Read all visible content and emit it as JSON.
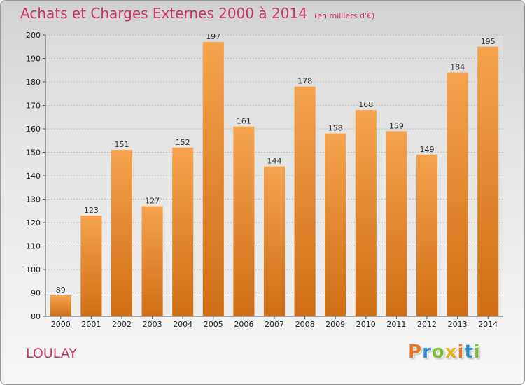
{
  "header": {
    "title": "Achats et Charges Externes 2000 à 2014",
    "subtitle": "(en milliers d'€)"
  },
  "footer": {
    "location": "LOULAY",
    "logo_text": "Proxiti"
  },
  "colors": {
    "title": "#c8336a",
    "bar_top": "#f5a34e",
    "bar_bottom": "#cf6e15",
    "logo_letters": [
      "#e8752a",
      "#2f8fd6",
      "#7cbf3a",
      "#e8b21c",
      "#e8752a",
      "#2f8fd6",
      "#7cbf3a"
    ]
  },
  "chart_data": {
    "type": "bar",
    "categories": [
      "2000",
      "2001",
      "2002",
      "2003",
      "2004",
      "2005",
      "2006",
      "2007",
      "2008",
      "2009",
      "2010",
      "2011",
      "2012",
      "2013",
      "2014"
    ],
    "values": [
      89,
      123,
      151,
      127,
      152,
      197,
      161,
      144,
      178,
      158,
      168,
      159,
      149,
      184,
      195
    ],
    "ylim": [
      80,
      200
    ],
    "yticks": [
      80,
      90,
      100,
      110,
      120,
      130,
      140,
      150,
      160,
      170,
      180,
      190,
      200
    ],
    "grid": true,
    "data_labels": true
  }
}
